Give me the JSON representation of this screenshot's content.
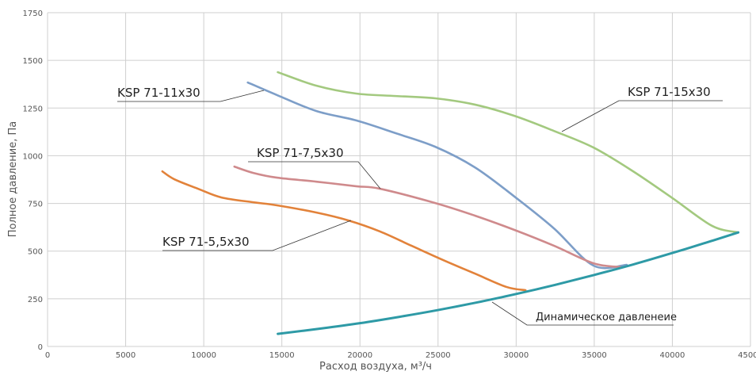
{
  "chart_data": {
    "type": "line",
    "title": "",
    "xlabel": "Расход воздуха, м³/ч",
    "ylabel": "Полное давление, Па",
    "xlim": [
      0,
      45000
    ],
    "ylim": [
      0,
      1750
    ],
    "xticks": [
      0,
      5000,
      10000,
      15000,
      20000,
      25000,
      30000,
      35000,
      40000,
      45000
    ],
    "yticks": [
      0,
      250,
      500,
      750,
      1000,
      1250,
      1500,
      1750
    ],
    "grid": true,
    "series": [
      {
        "name": "KSP 71-15x30",
        "color": "#a3c97f",
        "x": [
          14740,
          17220,
          19760,
          22290,
          24820,
          27360,
          29890,
          32420,
          34950,
          37490,
          40020,
          42550,
          44220
        ],
        "y": [
          1438,
          1367,
          1326,
          1313,
          1301,
          1268,
          1209,
          1130,
          1043,
          918,
          777,
          632,
          598
        ]
      },
      {
        "name": "KSP 71-11x30",
        "color": "#7d9ec8",
        "x": [
          12820,
          14690,
          17220,
          19760,
          22290,
          24820,
          27360,
          29890,
          32420,
          34950,
          37080
        ],
        "y": [
          1384,
          1318,
          1234,
          1185,
          1118,
          1047,
          939,
          786,
          619,
          424,
          428
        ]
      },
      {
        "name": "KSP 71-7,5x30",
        "color": "#cf8a8c",
        "x": [
          11960,
          13170,
          14690,
          17220,
          19760,
          21280,
          24820,
          27360,
          29890,
          32420,
          34950,
          36680
        ],
        "y": [
          943,
          910,
          885,
          864,
          840,
          827,
          752,
          686,
          611,
          528,
          436,
          416
        ]
      },
      {
        "name": "KSP 71-5,5x30",
        "color": "#e2823a",
        "x": [
          7350,
          8110,
          9630,
          11140,
          13170,
          14690,
          17220,
          19250,
          21280,
          23300,
          25330,
          27360,
          29380,
          30600
        ],
        "y": [
          918,
          877,
          827,
          781,
          756,
          740,
          702,
          661,
          603,
          528,
          453,
          382,
          312,
          295
        ]
      },
      {
        "name": "Динамическое давленеие",
        "color": "#2e9aa6",
        "x": [
          14740,
          17500,
          20000,
          22500,
          25000,
          27500,
          30000,
          32500,
          35000,
          37500,
          40000,
          42500,
          44220
        ],
        "y": [
          66,
          94,
          122,
          155,
          191,
          231,
          275,
          323,
          375,
          430,
          490,
          553,
          598
        ]
      }
    ]
  }
}
